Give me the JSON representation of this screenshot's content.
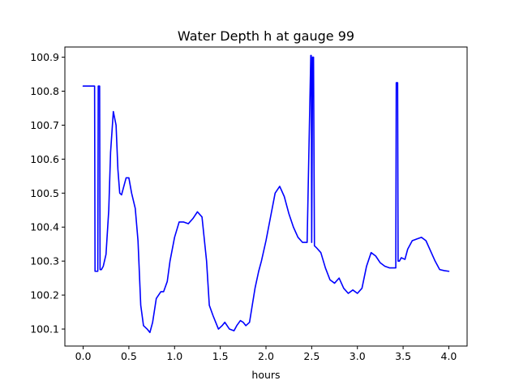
{
  "chart_data": {
    "type": "line",
    "title": "Water Depth h at gauge 99",
    "xlabel": "hours",
    "ylabel": "",
    "xlim": [
      -0.2,
      4.2
    ],
    "ylim": [
      100.05,
      100.93
    ],
    "grid": false,
    "x_ticks": [
      0.0,
      0.5,
      1.0,
      1.5,
      2.0,
      2.5,
      3.0,
      3.5,
      4.0
    ],
    "x_tick_labels": [
      "0.0",
      "0.5",
      "1.0",
      "1.5",
      "2.0",
      "2.5",
      "3.0",
      "3.5",
      "4.0"
    ],
    "y_ticks": [
      100.1,
      100.2,
      100.3,
      100.4,
      100.5,
      100.6,
      100.7,
      100.8,
      100.9
    ],
    "y_tick_labels": [
      "100.1",
      "100.2",
      "100.3",
      "100.4",
      "100.5",
      "100.6",
      "100.7",
      "100.8",
      "100.9"
    ],
    "series": [
      {
        "color": "#0000ff",
        "x": [
          0.0,
          0.125,
          0.13,
          0.16,
          0.165,
          0.18,
          0.185,
          0.2,
          0.22,
          0.25,
          0.28,
          0.3,
          0.33,
          0.36,
          0.38,
          0.4,
          0.42,
          0.45,
          0.47,
          0.5,
          0.53,
          0.57,
          0.6,
          0.63,
          0.66,
          0.7,
          0.73,
          0.76,
          0.8,
          0.85,
          0.88,
          0.92,
          0.95,
          1.0,
          1.05,
          1.1,
          1.15,
          1.2,
          1.25,
          1.3,
          1.35,
          1.38,
          1.42,
          1.45,
          1.48,
          1.52,
          1.55,
          1.6,
          1.65,
          1.68,
          1.72,
          1.75,
          1.78,
          1.82,
          1.85,
          1.88,
          1.92,
          1.95,
          2.0,
          2.05,
          2.1,
          2.15,
          2.2,
          2.25,
          2.3,
          2.35,
          2.4,
          2.45,
          2.49,
          2.495,
          2.5,
          2.51,
          2.52,
          2.53,
          2.55,
          2.6,
          2.65,
          2.7,
          2.75,
          2.8,
          2.85,
          2.9,
          2.95,
          3.0,
          3.05,
          3.1,
          3.15,
          3.2,
          3.25,
          3.3,
          3.35,
          3.38,
          3.42,
          3.425,
          3.44,
          3.445,
          3.46,
          3.48,
          3.52,
          3.55,
          3.6,
          3.65,
          3.7,
          3.75,
          3.8,
          3.85,
          3.9,
          3.95,
          4.0
        ],
        "y": [
          100.815,
          100.815,
          100.27,
          100.27,
          100.815,
          100.815,
          100.275,
          100.275,
          100.285,
          100.32,
          100.45,
          100.62,
          100.74,
          100.7,
          100.57,
          100.5,
          100.495,
          100.525,
          100.545,
          100.545,
          100.5,
          100.455,
          100.36,
          100.17,
          100.11,
          100.1,
          100.09,
          100.12,
          100.19,
          100.21,
          100.21,
          100.24,
          100.3,
          100.37,
          100.415,
          100.415,
          100.41,
          100.425,
          100.445,
          100.43,
          100.3,
          100.17,
          100.14,
          100.12,
          100.1,
          100.11,
          100.12,
          100.1,
          100.095,
          100.11,
          100.125,
          100.12,
          100.11,
          100.12,
          100.17,
          100.22,
          100.27,
          100.3,
          100.36,
          100.43,
          100.5,
          100.52,
          100.49,
          100.44,
          100.4,
          100.37,
          100.355,
          100.355,
          100.905,
          100.905,
          100.355,
          100.9,
          100.9,
          100.345,
          100.34,
          100.325,
          100.28,
          100.245,
          100.235,
          100.25,
          100.22,
          100.205,
          100.215,
          100.205,
          100.22,
          100.285,
          100.325,
          100.315,
          100.295,
          100.285,
          100.28,
          100.28,
          100.28,
          100.825,
          100.825,
          100.3,
          100.3,
          100.31,
          100.305,
          100.335,
          100.36,
          100.365,
          100.37,
          100.36,
          100.33,
          100.3,
          100.275,
          100.272,
          100.27
        ]
      }
    ]
  }
}
